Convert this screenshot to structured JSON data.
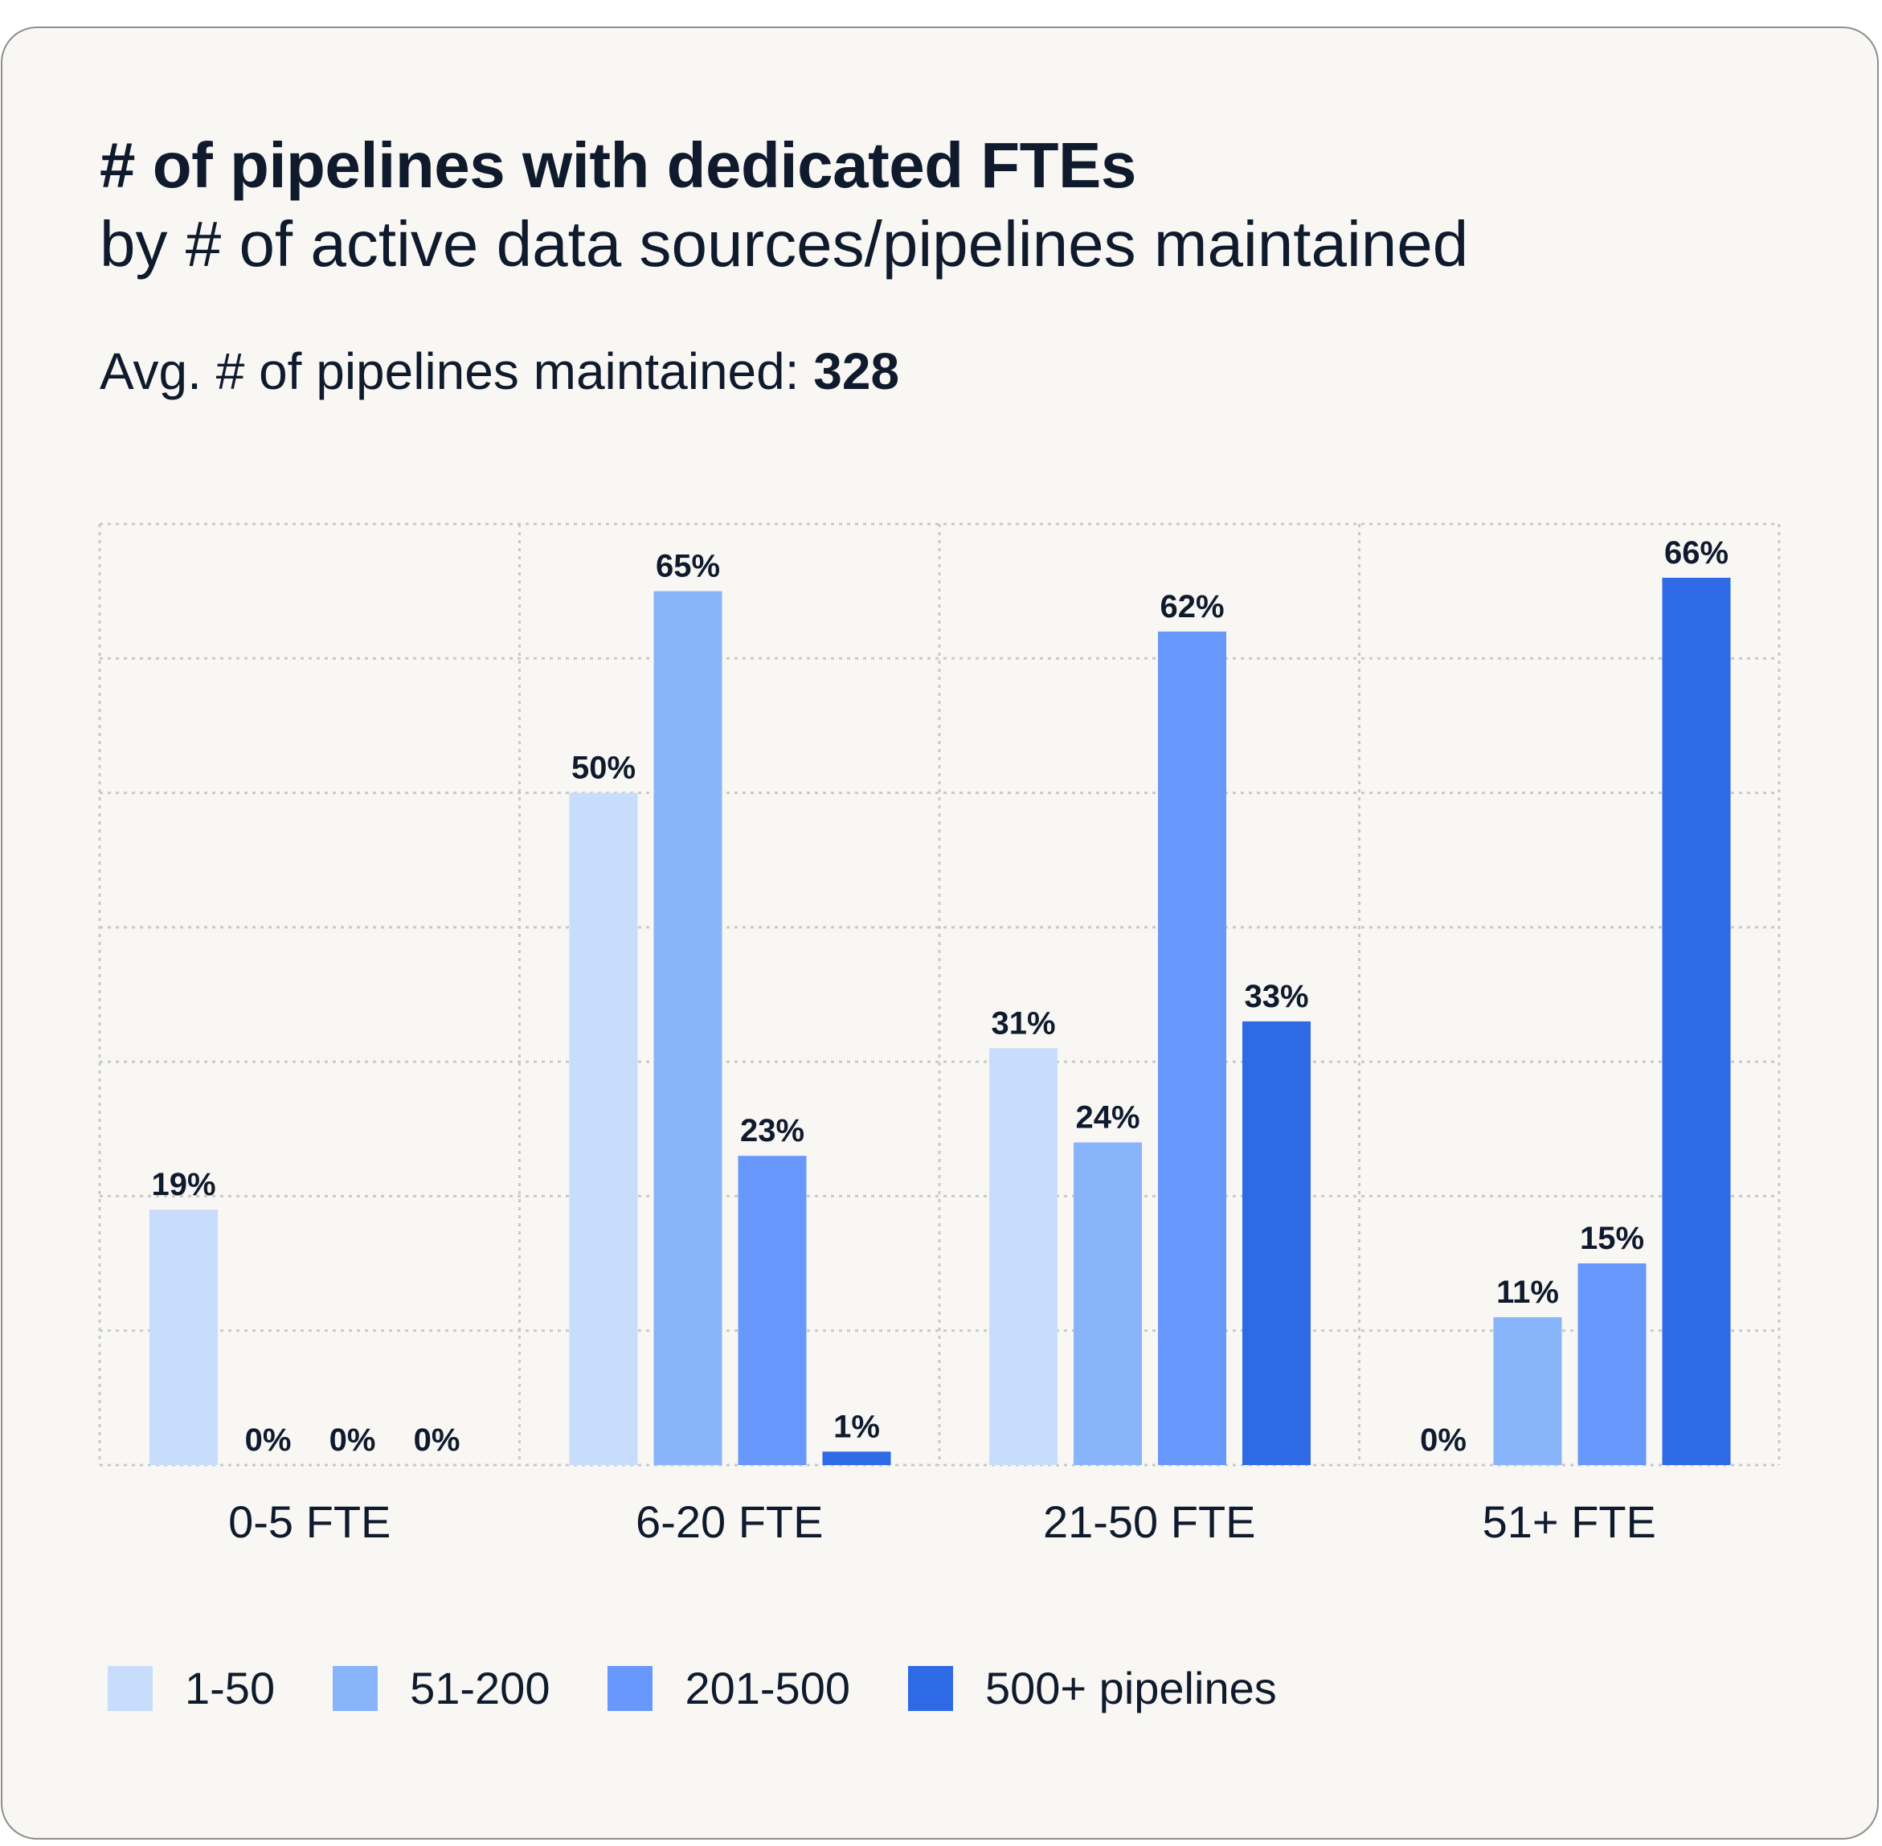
{
  "title": "# of pipelines with dedicated FTEs",
  "subtitle": "by # of active data sources/pipelines maintained",
  "avg_label": "Avg. # of pipelines maintained: ",
  "avg_value": "328",
  "chart_data": {
    "type": "bar",
    "title": "# of pipelines with dedicated FTEs",
    "subtitle": "by # of active data sources/pipelines maintained",
    "categories": [
      "0-5 FTE",
      "6-20 FTE",
      "21-50 FTE",
      "51+ FTE"
    ],
    "series": [
      {
        "name": "1-50",
        "values": [
          19,
          50,
          31,
          0
        ],
        "color": "#c8dcfb"
      },
      {
        "name": "51-200",
        "values": [
          0,
          65,
          24,
          11
        ],
        "color": "#88b4fb"
      },
      {
        "name": "201-500",
        "values": [
          0,
          23,
          62,
          15
        ],
        "color": "#6898fb"
      },
      {
        "name": "500+ pipelines",
        "values": [
          0,
          1,
          33,
          66
        ],
        "color": "#2f6ae6"
      }
    ],
    "value_suffix": "%",
    "ylim": [
      0,
      70
    ],
    "grid": true,
    "legend_position": "bottom-left",
    "xlabel": "",
    "ylabel": ""
  }
}
